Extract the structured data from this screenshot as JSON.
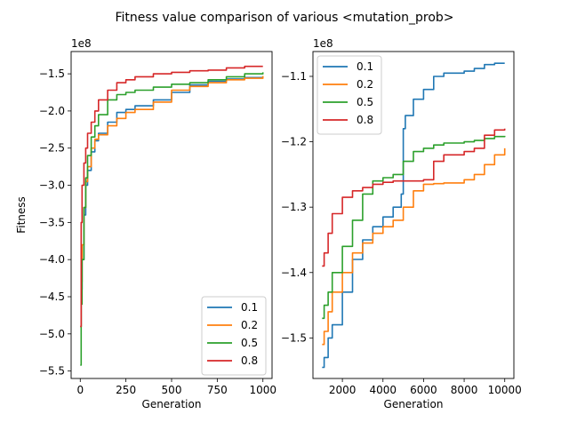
{
  "figure": {
    "title": "Fitness value comparison of various <mutation_prob>"
  },
  "chart_data": [
    {
      "type": "line",
      "xlabel": "Generation",
      "ylabel": "Fitness",
      "offset_label": "1e8",
      "xlim": [
        -50,
        1050
      ],
      "ylim": [
        -5.6,
        -1.2
      ],
      "xticks": [
        0,
        250,
        500,
        750,
        1000
      ],
      "xtick_labels": [
        "0",
        "250",
        "500",
        "750",
        "1000"
      ],
      "yticks": [
        -5.5,
        -5.0,
        -4.5,
        -4.0,
        -3.5,
        -3.0,
        -2.5,
        -2.0,
        -1.5
      ],
      "ytick_labels": [
        "−5.5",
        "−5.0",
        "−4.5",
        "−4.0",
        "−3.5",
        "−3.0",
        "−2.5",
        "−2.0",
        "−1.5"
      ],
      "grid": false,
      "legend_position": "lower right",
      "series": [
        {
          "name": "0.1",
          "color": "#1f77b4",
          "x": [
            0,
            5,
            10,
            20,
            30,
            40,
            60,
            80,
            100,
            150,
            200,
            250,
            300,
            400,
            500,
            600,
            700,
            800,
            900,
            1000
          ],
          "y": [
            -4.9,
            -4.4,
            -4.0,
            -3.4,
            -3.0,
            -2.8,
            -2.55,
            -2.4,
            -2.3,
            -2.15,
            -2.02,
            -1.98,
            -1.93,
            -1.85,
            -1.75,
            -1.65,
            -1.6,
            -1.57,
            -1.55,
            -1.54
          ]
        },
        {
          "name": "0.2",
          "color": "#ff7f0e",
          "x": [
            0,
            5,
            10,
            20,
            30,
            40,
            60,
            80,
            100,
            150,
            200,
            250,
            300,
            400,
            500,
            600,
            700,
            800,
            900,
            1000
          ],
          "y": [
            -4.9,
            -4.3,
            -3.8,
            -3.3,
            -2.95,
            -2.75,
            -2.5,
            -2.38,
            -2.32,
            -2.2,
            -2.1,
            -2.02,
            -1.98,
            -1.88,
            -1.72,
            -1.67,
            -1.62,
            -1.58,
            -1.56,
            -1.53
          ]
        },
        {
          "name": "0.5",
          "color": "#2ca02c",
          "x": [
            0,
            5,
            10,
            20,
            30,
            40,
            60,
            80,
            100,
            150,
            200,
            250,
            300,
            400,
            500,
            600,
            700,
            800,
            900,
            1000
          ],
          "y": [
            -5.42,
            -4.6,
            -4.0,
            -3.3,
            -2.9,
            -2.6,
            -2.35,
            -2.2,
            -2.05,
            -1.85,
            -1.78,
            -1.75,
            -1.72,
            -1.68,
            -1.64,
            -1.62,
            -1.58,
            -1.54,
            -1.5,
            -1.48
          ]
        },
        {
          "name": "0.8",
          "color": "#d62728",
          "x": [
            0,
            5,
            10,
            20,
            30,
            40,
            60,
            80,
            100,
            150,
            200,
            250,
            300,
            400,
            500,
            600,
            700,
            800,
            900,
            1000
          ],
          "y": [
            -4.9,
            -3.5,
            -3.0,
            -2.7,
            -2.5,
            -2.3,
            -2.15,
            -2.0,
            -1.85,
            -1.72,
            -1.62,
            -1.58,
            -1.54,
            -1.5,
            -1.48,
            -1.46,
            -1.45,
            -1.42,
            -1.4,
            -1.4
          ]
        }
      ]
    },
    {
      "type": "line",
      "xlabel": "Generation",
      "ylabel": "",
      "offset_label": "1e8",
      "xlim": [
        550,
        10450
      ],
      "ylim": [
        -1.562,
        -1.062
      ],
      "xticks": [
        2000,
        4000,
        6000,
        8000,
        10000
      ],
      "xtick_labels": [
        "2000",
        "4000",
        "6000",
        "8000",
        "10000"
      ],
      "yticks": [
        -1.5,
        -1.4,
        -1.3,
        -1.2,
        -1.1
      ],
      "ytick_labels": [
        "−1.5",
        "−1.4",
        "−1.3",
        "−1.2",
        "−1.1"
      ],
      "grid": false,
      "legend_position": "upper left",
      "series": [
        {
          "name": "0.1",
          "color": "#1f77b4",
          "x": [
            1000,
            1100,
            1300,
            1500,
            2000,
            2500,
            3000,
            3500,
            4000,
            4500,
            4900,
            5000,
            5100,
            5500,
            6000,
            6500,
            7000,
            8000,
            8500,
            9000,
            9500,
            10000
          ],
          "y": [
            -1.545,
            -1.53,
            -1.5,
            -1.48,
            -1.43,
            -1.38,
            -1.35,
            -1.33,
            -1.315,
            -1.3,
            -1.28,
            -1.18,
            -1.16,
            -1.135,
            -1.12,
            -1.1,
            -1.095,
            -1.092,
            -1.088,
            -1.082,
            -1.08,
            -1.08
          ]
        },
        {
          "name": "0.2",
          "color": "#ff7f0e",
          "x": [
            1000,
            1100,
            1300,
            1500,
            2000,
            2500,
            3000,
            3500,
            4000,
            4500,
            5000,
            5500,
            6000,
            6500,
            7000,
            8000,
            8500,
            9000,
            9500,
            10000
          ],
          "y": [
            -1.51,
            -1.49,
            -1.46,
            -1.43,
            -1.4,
            -1.37,
            -1.355,
            -1.34,
            -1.33,
            -1.32,
            -1.3,
            -1.275,
            -1.265,
            -1.264,
            -1.263,
            -1.258,
            -1.25,
            -1.235,
            -1.22,
            -1.21
          ]
        },
        {
          "name": "0.5",
          "color": "#2ca02c",
          "x": [
            1000,
            1100,
            1300,
            1500,
            2000,
            2500,
            3000,
            3500,
            4000,
            4500,
            5000,
            5500,
            6000,
            6500,
            7000,
            8000,
            8500,
            9000,
            9500,
            10000
          ],
          "y": [
            -1.47,
            -1.45,
            -1.43,
            -1.4,
            -1.36,
            -1.32,
            -1.28,
            -1.26,
            -1.255,
            -1.25,
            -1.23,
            -1.215,
            -1.21,
            -1.205,
            -1.202,
            -1.2,
            -1.198,
            -1.195,
            -1.192,
            -1.191
          ]
        },
        {
          "name": "0.8",
          "color": "#d62728",
          "x": [
            1000,
            1100,
            1300,
            1500,
            2000,
            2500,
            3000,
            3500,
            4000,
            4500,
            5000,
            5500,
            6000,
            6500,
            7000,
            8000,
            8500,
            9000,
            9500,
            10000
          ],
          "y": [
            -1.39,
            -1.37,
            -1.34,
            -1.31,
            -1.285,
            -1.275,
            -1.27,
            -1.265,
            -1.262,
            -1.26,
            -1.26,
            -1.26,
            -1.258,
            -1.23,
            -1.22,
            -1.215,
            -1.21,
            -1.19,
            -1.182,
            -1.18
          ]
        }
      ]
    }
  ]
}
